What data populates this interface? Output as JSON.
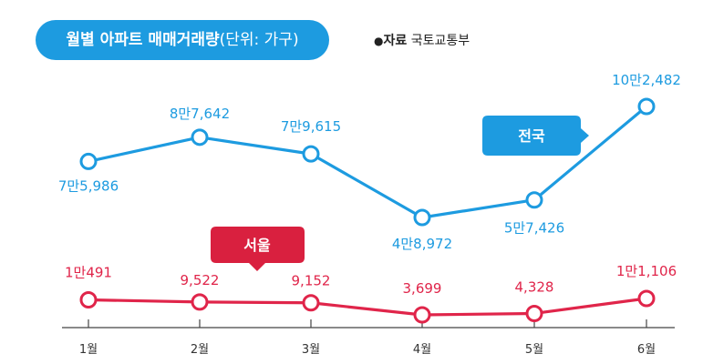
{
  "title_main": "월별 아파트 매매거래량",
  "title_unit": "(단위: 가구)",
  "source_label": "자료",
  "source_value": "국토교통부",
  "colors": {
    "national": "#1d9be0",
    "seoul": "#e0254a",
    "axis": "#444444",
    "badge_national": "#1d9be0",
    "badge_seoul": "#d9203f"
  },
  "chart_data": {
    "type": "line",
    "x": [
      "1월",
      "2월",
      "3월",
      "4월",
      "5월",
      "6월"
    ],
    "series": [
      {
        "name": "전국",
        "values": [
          75986,
          87642,
          79615,
          48972,
          57426,
          102482
        ],
        "labels": [
          "7만5,986",
          "8만7,642",
          "7만9,615",
          "4만8,972",
          "5만7,426",
          "10만2,482"
        ]
      },
      {
        "name": "서울",
        "values": [
          10491,
          9522,
          9152,
          3699,
          4328,
          11106
        ],
        "labels": [
          "1만491",
          "9,522",
          "9,152",
          "3,699",
          "4,328",
          "1만1,106"
        ]
      }
    ],
    "legend": "inline-callouts",
    "grid": false
  }
}
